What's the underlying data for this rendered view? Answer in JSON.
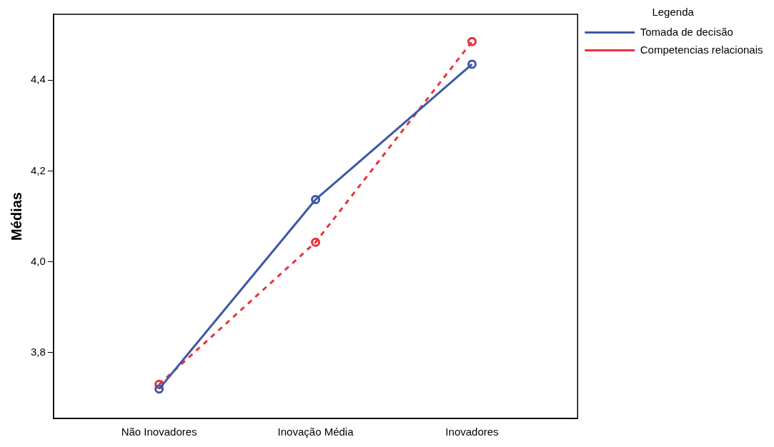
{
  "chart_data": {
    "type": "line",
    "ylabel": "Médias",
    "legend_title": "Legenda",
    "legend": "right",
    "grid": false,
    "marker": "circle",
    "categories": [
      "Não Inovadores",
      "Inovação Média",
      "Inovadores"
    ],
    "ylim": [
      3.655,
      4.545
    ],
    "yticks": [
      {
        "value": 3.8,
        "label": "3,8"
      },
      {
        "value": 4.0,
        "label": "4,0"
      },
      {
        "value": 4.2,
        "label": "4,2"
      },
      {
        "value": 4.4,
        "label": "4,4"
      }
    ],
    "series": [
      {
        "name": "Tomada de decisão",
        "color": "#3f57a6",
        "values": [
          3.72,
          4.137,
          4.435
        ],
        "line_style": "solid"
      },
      {
        "name": "Competencias relacionais",
        "color": "#e8323c",
        "values": [
          3.73,
          4.043,
          4.485
        ],
        "line_style": "dashed"
      }
    ]
  }
}
